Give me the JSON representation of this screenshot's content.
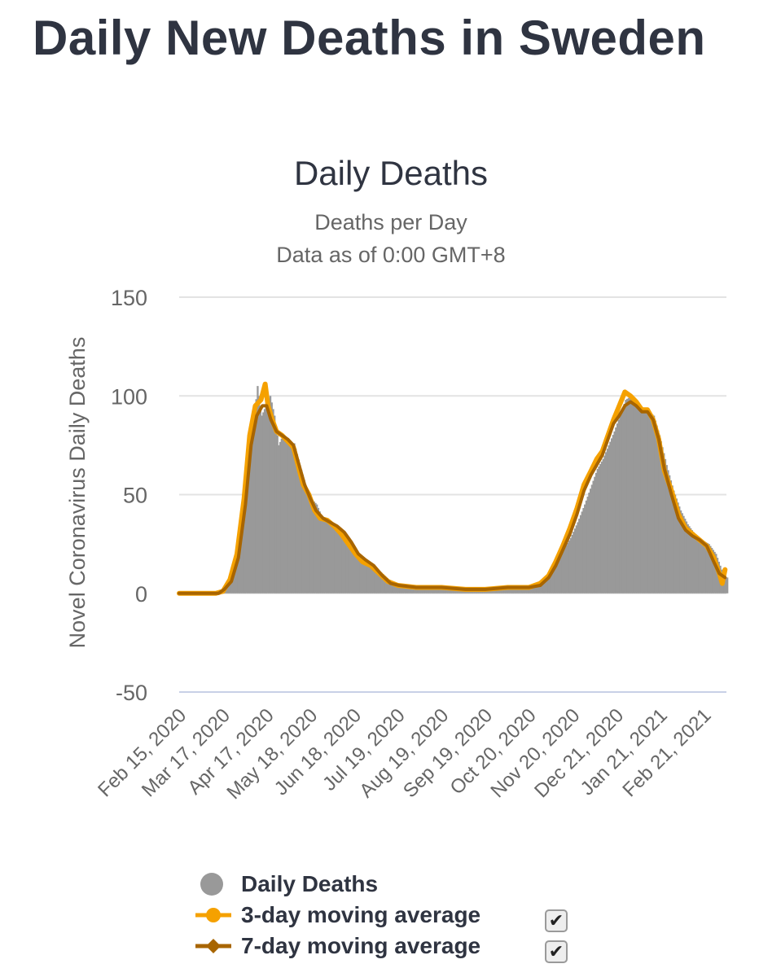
{
  "page_title": "Daily New Deaths in Sweden",
  "chart_data": {
    "type": "bar",
    "title": "Daily Deaths",
    "subtitle_lines": [
      "Deaths per Day",
      "Data as of 0:00 GMT+8"
    ],
    "ylabel": "Novel Coronavirus Daily Deaths",
    "xlabel": "",
    "ylim": [
      -50,
      150
    ],
    "yticks": [
      -50,
      0,
      50,
      100,
      150
    ],
    "grid": true,
    "legend_position": "bottom",
    "x_start": "2020-02-15",
    "x_end": "2021-03-09",
    "x_tick_labels": [
      {
        "date": "2020-02-15",
        "label": "Feb 15, 2020"
      },
      {
        "date": "2020-03-17",
        "label": "Mar 17, 2020"
      },
      {
        "date": "2020-04-17",
        "label": "Apr 17, 2020"
      },
      {
        "date": "2020-05-18",
        "label": "May 18, 2020"
      },
      {
        "date": "2020-06-18",
        "label": "Jun 18, 2020"
      },
      {
        "date": "2020-07-19",
        "label": "Jul 19, 2020"
      },
      {
        "date": "2020-08-19",
        "label": "Aug 19, 2020"
      },
      {
        "date": "2020-09-19",
        "label": "Sep 19, 2020"
      },
      {
        "date": "2020-10-20",
        "label": "Oct 20, 2020"
      },
      {
        "date": "2020-11-20",
        "label": "Nov 20, 2020"
      },
      {
        "date": "2020-12-21",
        "label": "Dec 21, 2020"
      },
      {
        "date": "2021-01-21",
        "label": "Jan 21, 2021"
      },
      {
        "date": "2021-02-21",
        "label": "Feb 21, 2021"
      }
    ],
    "series": [
      {
        "name": "Daily Deaths",
        "type": "bar",
        "color": "#999999",
        "points": [
          [
            "2020-02-15",
            0
          ],
          [
            "2020-03-10",
            0
          ],
          [
            "2020-03-17",
            2
          ],
          [
            "2020-03-22",
            6
          ],
          [
            "2020-03-28",
            25
          ],
          [
            "2020-04-01",
            45
          ],
          [
            "2020-04-04",
            70
          ],
          [
            "2020-04-07",
            85
          ],
          [
            "2020-04-10",
            105
          ],
          [
            "2020-04-13",
            90
          ],
          [
            "2020-04-16",
            95
          ],
          [
            "2020-04-19",
            100
          ],
          [
            "2020-04-22",
            90
          ],
          [
            "2020-04-25",
            75
          ],
          [
            "2020-04-28",
            80
          ],
          [
            "2020-05-02",
            75
          ],
          [
            "2020-05-06",
            76
          ],
          [
            "2020-05-10",
            65
          ],
          [
            "2020-05-14",
            55
          ],
          [
            "2020-05-18",
            48
          ],
          [
            "2020-05-22",
            45
          ],
          [
            "2020-05-26",
            38
          ],
          [
            "2020-05-30",
            36
          ],
          [
            "2020-06-03",
            34
          ],
          [
            "2020-06-08",
            32
          ],
          [
            "2020-06-12",
            30
          ],
          [
            "2020-06-16",
            25
          ],
          [
            "2020-06-20",
            20
          ],
          [
            "2020-06-25",
            16
          ],
          [
            "2020-07-01",
            13
          ],
          [
            "2020-07-06",
            11
          ],
          [
            "2020-07-12",
            7
          ],
          [
            "2020-07-19",
            4
          ],
          [
            "2020-07-26",
            3
          ],
          [
            "2020-08-05",
            3
          ],
          [
            "2020-08-19",
            3
          ],
          [
            "2020-09-01",
            2
          ],
          [
            "2020-09-19",
            2
          ],
          [
            "2020-10-05",
            2
          ],
          [
            "2020-10-20",
            3
          ],
          [
            "2020-10-28",
            4
          ],
          [
            "2020-11-03",
            8
          ],
          [
            "2020-11-08",
            15
          ],
          [
            "2020-11-13",
            22
          ],
          [
            "2020-11-18",
            28
          ],
          [
            "2020-11-23",
            36
          ],
          [
            "2020-11-28",
            45
          ],
          [
            "2020-12-03",
            55
          ],
          [
            "2020-12-07",
            63
          ],
          [
            "2020-12-11",
            68
          ],
          [
            "2020-12-15",
            75
          ],
          [
            "2020-12-19",
            82
          ],
          [
            "2020-12-23",
            90
          ],
          [
            "2020-12-27",
            98
          ],
          [
            "2020-12-31",
            100
          ],
          [
            "2021-01-04",
            95
          ],
          [
            "2021-01-08",
            92
          ],
          [
            "2021-01-12",
            92
          ],
          [
            "2021-01-16",
            90
          ],
          [
            "2021-01-20",
            80
          ],
          [
            "2021-01-25",
            65
          ],
          [
            "2021-01-30",
            52
          ],
          [
            "2021-02-04",
            42
          ],
          [
            "2021-02-09",
            35
          ],
          [
            "2021-02-14",
            30
          ],
          [
            "2021-02-19",
            27
          ],
          [
            "2021-02-24",
            25
          ],
          [
            "2021-03-01",
            20
          ],
          [
            "2021-03-05",
            12
          ],
          [
            "2021-03-08",
            8
          ]
        ]
      },
      {
        "name": "3-day moving average",
        "type": "line",
        "color": "#f5a100",
        "points": [
          [
            "2020-02-15",
            0
          ],
          [
            "2020-03-12",
            0
          ],
          [
            "2020-03-17",
            1
          ],
          [
            "2020-03-22",
            7
          ],
          [
            "2020-03-27",
            20
          ],
          [
            "2020-04-01",
            48
          ],
          [
            "2020-04-05",
            80
          ],
          [
            "2020-04-09",
            95
          ],
          [
            "2020-04-13",
            98
          ],
          [
            "2020-04-16",
            106
          ],
          [
            "2020-04-18",
            95
          ],
          [
            "2020-04-21",
            88
          ],
          [
            "2020-04-24",
            82
          ],
          [
            "2020-04-28",
            80
          ],
          [
            "2020-05-02",
            77
          ],
          [
            "2020-05-06",
            74
          ],
          [
            "2020-05-10",
            63
          ],
          [
            "2020-05-13",
            55
          ],
          [
            "2020-05-17",
            50
          ],
          [
            "2020-05-21",
            42
          ],
          [
            "2020-05-25",
            38
          ],
          [
            "2020-05-30",
            37
          ],
          [
            "2020-06-04",
            34
          ],
          [
            "2020-06-09",
            30
          ],
          [
            "2020-06-14",
            25
          ],
          [
            "2020-06-19",
            20
          ],
          [
            "2020-06-24",
            16
          ],
          [
            "2020-06-30",
            14
          ],
          [
            "2020-07-06",
            10
          ],
          [
            "2020-07-12",
            6
          ],
          [
            "2020-07-19",
            4
          ],
          [
            "2020-08-01",
            3
          ],
          [
            "2020-08-19",
            3
          ],
          [
            "2020-09-05",
            2
          ],
          [
            "2020-09-19",
            2
          ],
          [
            "2020-10-05",
            3
          ],
          [
            "2020-10-20",
            3
          ],
          [
            "2020-10-28",
            5
          ],
          [
            "2020-11-03",
            9
          ],
          [
            "2020-11-08",
            16
          ],
          [
            "2020-11-13",
            24
          ],
          [
            "2020-11-18",
            33
          ],
          [
            "2020-11-23",
            43
          ],
          [
            "2020-11-28",
            55
          ],
          [
            "2020-12-03",
            62
          ],
          [
            "2020-12-07",
            68
          ],
          [
            "2020-12-11",
            72
          ],
          [
            "2020-12-15",
            80
          ],
          [
            "2020-12-19",
            88
          ],
          [
            "2020-12-23",
            95
          ],
          [
            "2020-12-27",
            102
          ],
          [
            "2020-12-31",
            100
          ],
          [
            "2021-01-04",
            97
          ],
          [
            "2021-01-08",
            93
          ],
          [
            "2021-01-12",
            93
          ],
          [
            "2021-01-16",
            88
          ],
          [
            "2021-01-20",
            78
          ],
          [
            "2021-01-24",
            62
          ],
          [
            "2021-01-29",
            52
          ],
          [
            "2021-02-03",
            40
          ],
          [
            "2021-02-08",
            33
          ],
          [
            "2021-02-13",
            30
          ],
          [
            "2021-02-18",
            27
          ],
          [
            "2021-02-23",
            24
          ],
          [
            "2021-02-28",
            18
          ],
          [
            "2021-03-04",
            10
          ],
          [
            "2021-03-06",
            5
          ],
          [
            "2021-03-08",
            12
          ]
        ]
      },
      {
        "name": "7-day moving average",
        "type": "line",
        "color": "#a86500",
        "points": [
          [
            "2020-02-15",
            0
          ],
          [
            "2020-03-14",
            0
          ],
          [
            "2020-03-18",
            2
          ],
          [
            "2020-03-23",
            6
          ],
          [
            "2020-03-28",
            18
          ],
          [
            "2020-04-02",
            45
          ],
          [
            "2020-04-06",
            75
          ],
          [
            "2020-04-10",
            90
          ],
          [
            "2020-04-14",
            95
          ],
          [
            "2020-04-17",
            95
          ],
          [
            "2020-04-20",
            88
          ],
          [
            "2020-04-24",
            82
          ],
          [
            "2020-04-28",
            80
          ],
          [
            "2020-05-02",
            78
          ],
          [
            "2020-05-06",
            75
          ],
          [
            "2020-05-10",
            65
          ],
          [
            "2020-05-14",
            55
          ],
          [
            "2020-05-18",
            48
          ],
          [
            "2020-05-22",
            42
          ],
          [
            "2020-05-27",
            38
          ],
          [
            "2020-06-01",
            36
          ],
          [
            "2020-06-06",
            34
          ],
          [
            "2020-06-11",
            31
          ],
          [
            "2020-06-16",
            26
          ],
          [
            "2020-06-21",
            20
          ],
          [
            "2020-06-26",
            17
          ],
          [
            "2020-07-02",
            14
          ],
          [
            "2020-07-08",
            9
          ],
          [
            "2020-07-14",
            5
          ],
          [
            "2020-07-20",
            4
          ],
          [
            "2020-08-01",
            3
          ],
          [
            "2020-08-19",
            3
          ],
          [
            "2020-09-05",
            2
          ],
          [
            "2020-09-19",
            2
          ],
          [
            "2020-10-05",
            3
          ],
          [
            "2020-10-20",
            3
          ],
          [
            "2020-10-28",
            4
          ],
          [
            "2020-11-03",
            8
          ],
          [
            "2020-11-08",
            14
          ],
          [
            "2020-11-13",
            22
          ],
          [
            "2020-11-18",
            30
          ],
          [
            "2020-11-23",
            40
          ],
          [
            "2020-11-28",
            52
          ],
          [
            "2020-12-03",
            60
          ],
          [
            "2020-12-07",
            65
          ],
          [
            "2020-12-11",
            70
          ],
          [
            "2020-12-15",
            78
          ],
          [
            "2020-12-19",
            86
          ],
          [
            "2020-12-23",
            90
          ],
          [
            "2020-12-27",
            95
          ],
          [
            "2020-12-31",
            97
          ],
          [
            "2021-01-04",
            95
          ],
          [
            "2021-01-08",
            92
          ],
          [
            "2021-01-12",
            92
          ],
          [
            "2021-01-16",
            88
          ],
          [
            "2021-01-20",
            78
          ],
          [
            "2021-01-24",
            63
          ],
          [
            "2021-01-29",
            50
          ],
          [
            "2021-02-03",
            38
          ],
          [
            "2021-02-08",
            32
          ],
          [
            "2021-02-13",
            29
          ],
          [
            "2021-02-18",
            27
          ],
          [
            "2021-02-23",
            24
          ],
          [
            "2021-02-28",
            16
          ],
          [
            "2021-03-04",
            10
          ],
          [
            "2021-03-08",
            8
          ]
        ]
      }
    ]
  },
  "legend": {
    "items": [
      {
        "label": "Daily Deaths",
        "symbol": "circle",
        "color": "#999999",
        "checkbox": false
      },
      {
        "label": "3-day moving average",
        "symbol": "line-circle",
        "color": "#f5a100",
        "checkbox": true,
        "checked_glyph": "✔"
      },
      {
        "label": "7-day moving average",
        "symbol": "line-diamond",
        "color": "#a86500",
        "checkbox": true,
        "checked_glyph": "✔"
      }
    ]
  }
}
